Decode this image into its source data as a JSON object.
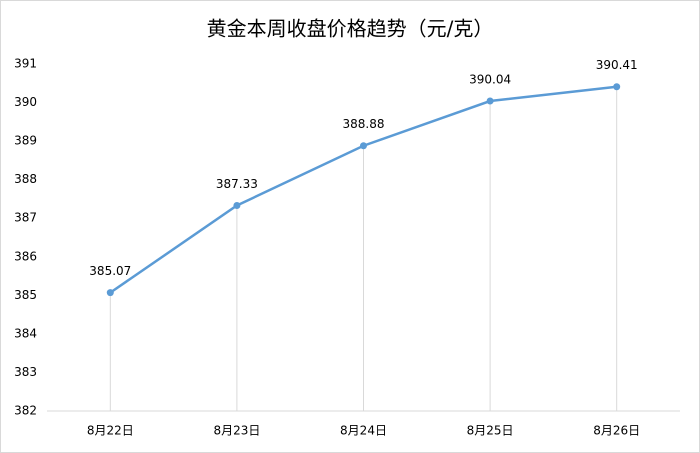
{
  "chart_data": {
    "type": "line",
    "title": "黄金本周收盘价格趋势（元/克）",
    "categories": [
      "8月22日",
      "8月23日",
      "8月24日",
      "8月25日",
      "8月26日"
    ],
    "values": [
      385.07,
      387.33,
      388.88,
      390.04,
      390.41
    ],
    "color": "#5b9bd5",
    "ylim": [
      382,
      391
    ],
    "yticks": [
      382,
      383,
      384,
      385,
      386,
      387,
      388,
      389,
      390,
      391
    ],
    "drop_lines": true
  }
}
